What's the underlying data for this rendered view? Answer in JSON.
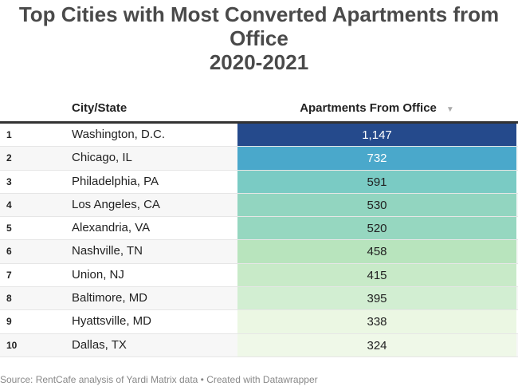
{
  "title": "Top Cities with Most Converted Apartments from Office\n2020-2021",
  "chart_data": {
    "type": "table",
    "columns": [
      "",
      "City/State",
      "Apartments From Office"
    ],
    "sort": "descending by Apartments From Office",
    "rows": [
      {
        "rank": "1",
        "city": "Washington, D.C.",
        "value": "1,147",
        "color": "#254a8c"
      },
      {
        "rank": "2",
        "city": "Chicago, IL",
        "value": "732",
        "color": "#4aa8cb"
      },
      {
        "rank": "3",
        "city": "Philadelphia, PA",
        "value": "591",
        "color": "#7acbc4"
      },
      {
        "rank": "4",
        "city": "Los Angeles, CA",
        "value": "530",
        "color": "#92d5c0"
      },
      {
        "rank": "5",
        "city": "Alexandria, VA",
        "value": "520",
        "color": "#96d7c0"
      },
      {
        "rank": "6",
        "city": "Nashville, TN",
        "value": "458",
        "color": "#b8e4bd"
      },
      {
        "rank": "7",
        "city": "Union, NJ",
        "value": "415",
        "color": "#c8eac8"
      },
      {
        "rank": "8",
        "city": "Baltimore, MD",
        "value": "395",
        "color": "#d2eed2"
      },
      {
        "rank": "9",
        "city": "Hyattsville, MD",
        "value": "338",
        "color": "#ebf7e3"
      },
      {
        "rank": "10",
        "city": "Dallas, TX",
        "value": "324",
        "color": "#eff8e8"
      }
    ]
  },
  "source": "Source: RentCafe analysis of Yardi Matrix data • Created with Datawrapper"
}
